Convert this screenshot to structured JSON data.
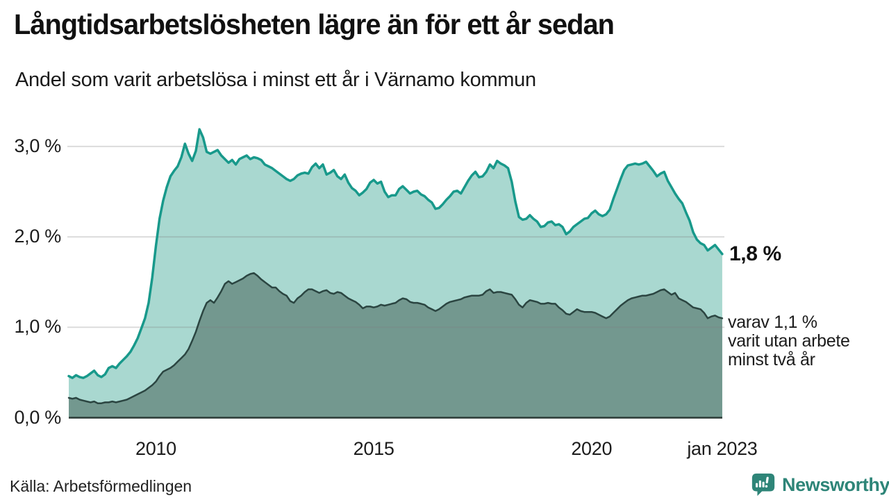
{
  "header": {
    "title": "Långtidsarbetslösheten lägre än för ett år sedan",
    "subtitle": "Andel som varit arbetslösa i minst ett år i Värnamo kommun"
  },
  "annotations": {
    "latest_total": "1,8 %",
    "secondary": "varav 1,1 %\nvarit utan arbete\nminst två år"
  },
  "footer": {
    "source": "Källa: Arbetsförmedlingen",
    "brand": "Newsworthy",
    "logo_icon": "newsworthy-speech-bubble-bar-chart-icon"
  },
  "colors": {
    "accent_teal": "#18998b",
    "light_fill": "#a9d8d0",
    "dark_line": "#2b4541",
    "dark_fill": "#73988f",
    "gridline": "rgba(125,125,125,0.27)",
    "baseline": "#2b3a37",
    "brand_teal": "#2e8578",
    "text": "#1a1a1a"
  },
  "chart_data": {
    "type": "area",
    "title": "Långtidsarbetslösheten lägre än för ett år sedan",
    "subtitle": "Andel som varit arbetslösa i minst ett år i Värnamo kommun",
    "xlabel": "",
    "ylabel": "",
    "x_unit": "month",
    "x_range": [
      "2008-01",
      "2023-01"
    ],
    "ylim": [
      0,
      3.3
    ],
    "grid": true,
    "legend": "none",
    "yticks": [
      {
        "value": 0,
        "label": "0,0 %"
      },
      {
        "value": 1,
        "label": "1,0 %"
      },
      {
        "value": 2,
        "label": "2,0 %"
      },
      {
        "value": 3,
        "label": "3,0 %"
      }
    ],
    "xticks": [
      {
        "year": 2010,
        "label": "2010"
      },
      {
        "year": 2015,
        "label": "2015"
      },
      {
        "year": 2020,
        "label": "2020"
      },
      {
        "year": 2023,
        "label": "jan 2023"
      }
    ],
    "series": [
      {
        "name": "Arbetslösa minst ett år",
        "color": "#18998b",
        "fill": "#a9d8d0",
        "stroke_width": 3.5,
        "latest_value": 1.8,
        "start_year": 2008,
        "values": [
          0.46,
          0.44,
          0.47,
          0.45,
          0.44,
          0.46,
          0.49,
          0.52,
          0.47,
          0.45,
          0.48,
          0.55,
          0.57,
          0.55,
          0.6,
          0.64,
          0.68,
          0.73,
          0.8,
          0.88,
          0.99,
          1.1,
          1.27,
          1.55,
          1.9,
          2.2,
          2.4,
          2.55,
          2.67,
          2.73,
          2.78,
          2.88,
          3.03,
          2.92,
          2.84,
          2.95,
          3.19,
          3.1,
          2.94,
          2.92,
          2.94,
          2.96,
          2.9,
          2.86,
          2.82,
          2.85,
          2.8,
          2.86,
          2.88,
          2.9,
          2.86,
          2.88,
          2.87,
          2.85,
          2.8,
          2.78,
          2.76,
          2.73,
          2.7,
          2.67,
          2.64,
          2.62,
          2.64,
          2.68,
          2.7,
          2.71,
          2.7,
          2.77,
          2.81,
          2.76,
          2.8,
          2.69,
          2.71,
          2.74,
          2.67,
          2.64,
          2.69,
          2.6,
          2.54,
          2.51,
          2.46,
          2.49,
          2.53,
          2.6,
          2.63,
          2.59,
          2.61,
          2.5,
          2.44,
          2.46,
          2.46,
          2.53,
          2.56,
          2.52,
          2.48,
          2.5,
          2.51,
          2.47,
          2.45,
          2.41,
          2.38,
          2.31,
          2.32,
          2.36,
          2.41,
          2.45,
          2.5,
          2.51,
          2.48,
          2.55,
          2.62,
          2.68,
          2.72,
          2.66,
          2.67,
          2.72,
          2.8,
          2.76,
          2.84,
          2.81,
          2.79,
          2.76,
          2.61,
          2.39,
          2.22,
          2.19,
          2.2,
          2.24,
          2.2,
          2.17,
          2.11,
          2.12,
          2.16,
          2.17,
          2.13,
          2.14,
          2.11,
          2.03,
          2.06,
          2.11,
          2.14,
          2.17,
          2.2,
          2.21,
          2.26,
          2.29,
          2.25,
          2.23,
          2.25,
          2.3,
          2.42,
          2.53,
          2.64,
          2.74,
          2.79,
          2.8,
          2.81,
          2.8,
          2.81,
          2.83,
          2.78,
          2.73,
          2.67,
          2.7,
          2.72,
          2.62,
          2.55,
          2.48,
          2.42,
          2.37,
          2.27,
          2.18,
          2.05,
          1.97,
          1.93,
          1.91,
          1.85,
          1.88,
          1.91,
          1.86,
          1.81
        ]
      },
      {
        "name": "Arbetslösa minst två år",
        "color": "#2b4541",
        "fill": "#73988f",
        "stroke_width": 2.5,
        "latest_value": 1.1,
        "start_year": 2008,
        "values": [
          0.22,
          0.21,
          0.22,
          0.2,
          0.19,
          0.18,
          0.17,
          0.18,
          0.16,
          0.16,
          0.17,
          0.17,
          0.18,
          0.17,
          0.18,
          0.19,
          0.2,
          0.22,
          0.24,
          0.26,
          0.28,
          0.3,
          0.33,
          0.36,
          0.4,
          0.46,
          0.51,
          0.53,
          0.55,
          0.58,
          0.62,
          0.66,
          0.7,
          0.76,
          0.85,
          0.95,
          1.07,
          1.18,
          1.27,
          1.3,
          1.27,
          1.33,
          1.4,
          1.48,
          1.51,
          1.48,
          1.5,
          1.52,
          1.54,
          1.57,
          1.59,
          1.6,
          1.57,
          1.53,
          1.5,
          1.47,
          1.44,
          1.44,
          1.4,
          1.37,
          1.35,
          1.29,
          1.27,
          1.32,
          1.35,
          1.39,
          1.42,
          1.42,
          1.4,
          1.38,
          1.4,
          1.41,
          1.38,
          1.37,
          1.39,
          1.38,
          1.35,
          1.32,
          1.3,
          1.28,
          1.25,
          1.21,
          1.23,
          1.23,
          1.22,
          1.23,
          1.25,
          1.24,
          1.25,
          1.26,
          1.27,
          1.3,
          1.32,
          1.31,
          1.28,
          1.27,
          1.27,
          1.26,
          1.25,
          1.22,
          1.2,
          1.18,
          1.2,
          1.23,
          1.26,
          1.28,
          1.29,
          1.3,
          1.31,
          1.33,
          1.34,
          1.35,
          1.35,
          1.35,
          1.36,
          1.4,
          1.42,
          1.38,
          1.39,
          1.39,
          1.38,
          1.37,
          1.36,
          1.31,
          1.25,
          1.22,
          1.27,
          1.3,
          1.29,
          1.28,
          1.26,
          1.26,
          1.27,
          1.26,
          1.26,
          1.22,
          1.19,
          1.15,
          1.14,
          1.17,
          1.2,
          1.18,
          1.17,
          1.17,
          1.17,
          1.16,
          1.14,
          1.12,
          1.1,
          1.12,
          1.16,
          1.2,
          1.24,
          1.27,
          1.3,
          1.32,
          1.33,
          1.34,
          1.35,
          1.35,
          1.36,
          1.37,
          1.39,
          1.41,
          1.42,
          1.39,
          1.36,
          1.38,
          1.32,
          1.3,
          1.28,
          1.25,
          1.22,
          1.21,
          1.2,
          1.16,
          1.1,
          1.12,
          1.13,
          1.11,
          1.1
        ]
      }
    ]
  }
}
